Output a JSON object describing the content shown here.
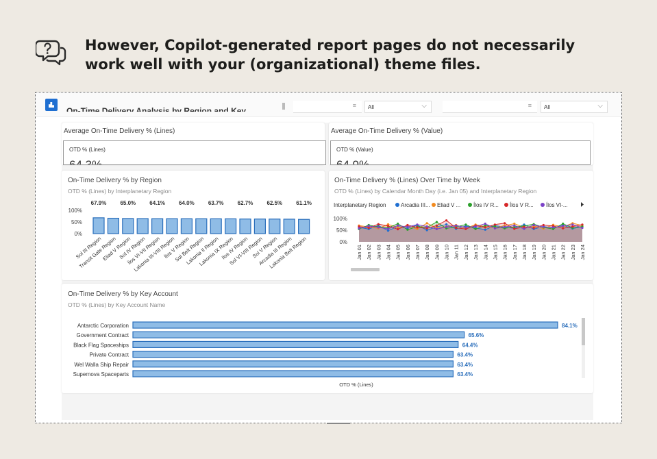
{
  "headline": "However, Copilot-generated report pages do not necessarily work well with your (organizational) theme files.",
  "report": {
    "title": "On-Time Delivery Analysis by Region and Key",
    "slicer1_dropdown": "All",
    "slicer2_dropdown": "All"
  },
  "kpis": [
    {
      "card_title": "Average On-Time Delivery % (Lines)",
      "label": "OTD % (Lines)",
      "value": "64.3%"
    },
    {
      "card_title": "Average On-Time Delivery % (Value)",
      "label": "OTD % (Value)",
      "value": "64.9%"
    }
  ],
  "colors": {
    "bar": "#8fbce6",
    "bar_border": "#2a6ebb",
    "accent": "#1f6fd1"
  },
  "chart_data": [
    {
      "type": "bar",
      "title": "On-Time Delivery % by Region",
      "subtitle": "OTD % (Lines) by Interplanetary Region",
      "categories": [
        "Sol III Region",
        "Transit Gate Region",
        "Eliad V Region",
        "Sol IV Region",
        "Ílos VI-VII Region",
        "Lakonia III-VIII Region",
        "Ílos V Region",
        "Sol Belt Region",
        "Lakonia II Region",
        "Lakonia IX Region",
        "Ilos IV Region",
        "Sol VI-VIII Region",
        "Sol V Region",
        "Arcadia III Region",
        "Lakonia Belt Region"
      ],
      "values": [
        67.9,
        66.0,
        65.0,
        64.5,
        64.1,
        64.0,
        64.0,
        63.9,
        63.7,
        63.5,
        62.7,
        62.6,
        62.5,
        62.0,
        61.1
      ],
      "data_labels": [
        "67.9%",
        "",
        "65.0%",
        "",
        "64.1%",
        "",
        "64.0%",
        "",
        "63.7%",
        "",
        "62.7%",
        "",
        "62.5%",
        "",
        "61.1%"
      ],
      "y_ticks": [
        "100%",
        "50%",
        "0%"
      ],
      "ylim": [
        0,
        100
      ]
    },
    {
      "type": "area",
      "title": "On-Time Delivery % (Lines) Over Time by Week",
      "subtitle": "OTD % (Lines) by Calendar Month Day (i.e. Jan 05) and Interplanetary Region",
      "legend_title": "Interplanetary Region",
      "legend": [
        {
          "name": "Arcadia III...",
          "color": "#1f6fd1"
        },
        {
          "name": "Eliad V ...",
          "color": "#f28a1e"
        },
        {
          "name": "Ílos IV R...",
          "color": "#2ca02c"
        },
        {
          "name": "Ílos V R...",
          "color": "#d62728"
        },
        {
          "name": "Ílos VI-...",
          "color": "#7b42c8"
        }
      ],
      "x": [
        "Jan 01",
        "Jan 02",
        "Jan 03",
        "Jan 04",
        "Jan 05",
        "Jan 06",
        "Jan 07",
        "Jan 08",
        "Jan 09",
        "Jan 10",
        "Jan 11",
        "Jan 12",
        "Jan 13",
        "Jan 14",
        "Jan 15",
        "Jan 16",
        "Jan 17",
        "Jan 18",
        "Jan 19",
        "Jan 20",
        "Jan 21",
        "Jan 22",
        "Jan 23",
        "Jan 24"
      ],
      "series": [
        {
          "name": "Arcadia III...",
          "values": [
            62,
            55,
            70,
            48,
            66,
            58,
            72,
            50,
            64,
            75,
            56,
            68,
            60,
            52,
            70,
            63,
            58,
            74,
            55,
            66,
            60,
            71,
            57,
            65
          ]
        },
        {
          "name": "Eliad V ...",
          "values": [
            70,
            64,
            58,
            75,
            62,
            68,
            55,
            80,
            60,
            66,
            72,
            58,
            74,
            65,
            60,
            70,
            78,
            62,
            68,
            57,
            73,
            64,
            80,
            70
          ]
        },
        {
          "name": "Ílos IV R...",
          "values": [
            55,
            72,
            64,
            60,
            78,
            52,
            66,
            62,
            85,
            58,
            64,
            74,
            55,
            70,
            66,
            58,
            64,
            68,
            76,
            62,
            55,
            78,
            60,
            66
          ]
        },
        {
          "name": "Ílos V R...",
          "values": [
            66,
            60,
            76,
            68,
            54,
            72,
            62,
            58,
            70,
            92,
            60,
            55,
            70,
            62,
            74,
            80,
            56,
            64,
            60,
            72,
            68,
            58,
            66,
            74
          ]
        },
        {
          "name": "Ílos VI-...",
          "values": [
            58,
            68,
            62,
            56,
            70,
            64,
            74,
            66,
            55,
            64,
            70,
            62,
            66,
            78,
            58,
            64,
            70,
            56,
            72,
            64,
            62,
            68,
            74,
            60
          ]
        }
      ],
      "y_ticks": [
        "100%",
        "50%",
        "0%"
      ],
      "ylim": [
        0,
        100
      ]
    },
    {
      "type": "bar",
      "orientation": "horizontal",
      "title": "On-Time Delivery % by Key Account",
      "subtitle": "OTD % (Lines) by Key Account Name",
      "categories": [
        "Antarctic Corporation",
        "Government Contract",
        "Black Flag Spaceships",
        "Private Contract",
        "Wel Walla Ship Repair",
        "Supernova Spaceparts"
      ],
      "values": [
        84.1,
        65.6,
        64.4,
        63.4,
        63.4,
        63.4
      ],
      "data_labels": [
        "84.1%",
        "65.6%",
        "64.4%",
        "63.4%",
        "63.4%",
        "63.4%"
      ],
      "xlabel": "OTD % (Lines)"
    }
  ]
}
